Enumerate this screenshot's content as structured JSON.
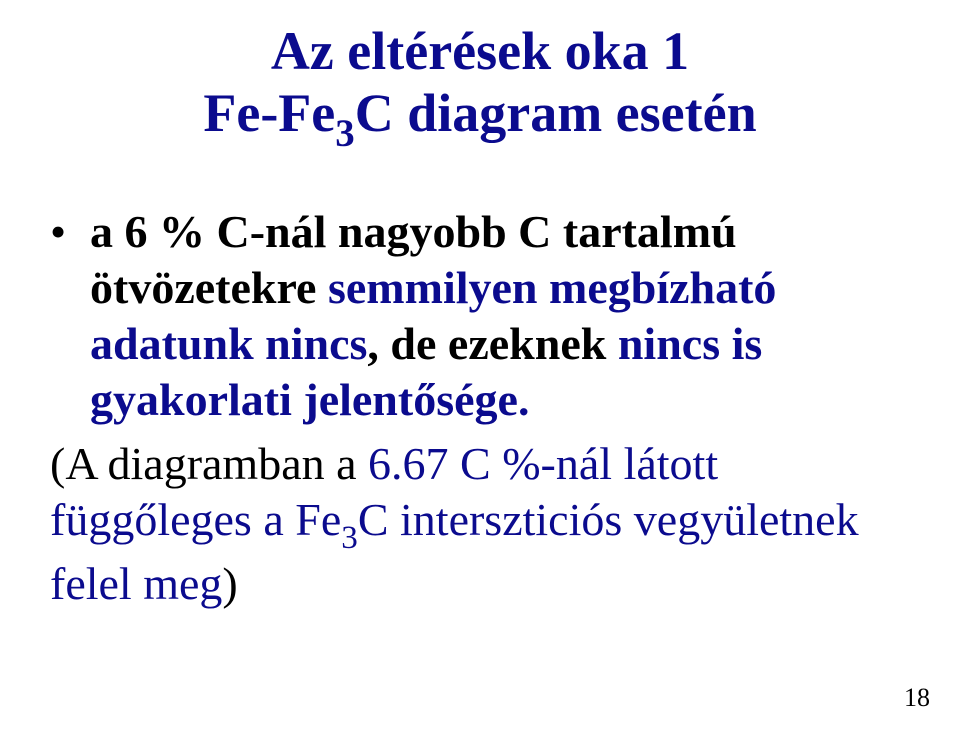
{
  "colors": {
    "title": "#0b0b8e",
    "body_black": "#000000",
    "body_blue": "#0b0b8e",
    "page_num": "#000000",
    "background": "#ffffff"
  },
  "typography": {
    "font_family": "Times New Roman",
    "title_fontsize_pt": 40,
    "body_fontsize_pt": 34,
    "page_num_fontsize_pt": 20,
    "title_weight": "bold",
    "bullet_weight": "bold",
    "paren_weight": "normal"
  },
  "title": {
    "line1": "Az eltérések oka 1",
    "line2_pre": "Fe-Fe",
    "line2_sub": "3",
    "line2_post": "C diagram esetén"
  },
  "bullet": {
    "marker": "•",
    "seg1": "a 6 % C-nál nagyobb C tartalmú ötvözetekre ",
    "seg2": "semmilyen megbízható adatunk nincs",
    "seg3": ", de ezeknek ",
    "seg4": "nincs is gyakorlati jelentősége."
  },
  "paren": {
    "seg1": "(A diagramban a ",
    "seg2_pre": "6.67  C %-nál látott függőleges  a Fe",
    "seg2_sub": "3",
    "seg2_post": "C  interszticiós vegyületnek felel meg",
    "seg3": ")"
  },
  "page_number": "18"
}
